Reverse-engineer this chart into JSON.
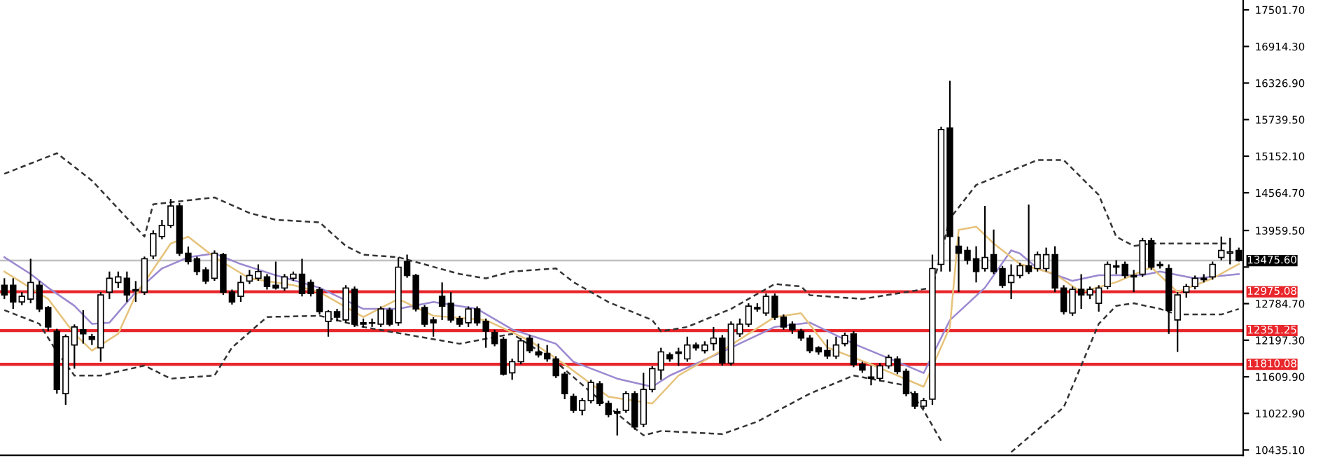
{
  "chart_data": {
    "type": "candlestick",
    "categories": [
      null,
      null,
      null,
      null,
      null,
      null,
      null,
      null,
      null,
      null,
      null,
      null,
      null,
      null,
      null,
      null,
      null,
      null,
      null,
      null,
      null,
      null,
      null,
      null,
      null,
      null,
      null,
      null,
      null,
      null,
      null,
      null,
      null,
      null,
      null,
      null,
      null,
      null,
      null,
      null,
      null,
      null,
      null,
      null,
      null,
      null,
      null,
      null,
      null,
      null,
      null,
      null,
      null,
      null,
      null,
      null,
      null,
      null,
      null,
      null,
      null,
      null,
      null,
      null,
      null,
      null,
      null,
      null,
      null,
      null,
      null,
      null,
      null,
      null,
      null,
      null,
      null,
      null,
      null,
      null,
      null,
      null,
      null,
      null,
      null,
      null,
      null,
      null,
      null,
      null,
      null,
      null,
      null,
      null,
      null,
      null,
      null,
      null,
      null,
      null,
      null,
      null,
      null,
      null,
      null,
      null,
      null,
      null,
      null,
      null,
      null,
      null,
      null,
      null,
      null,
      null,
      null,
      null,
      null,
      null,
      null,
      null,
      null,
      null,
      null,
      null,
      null,
      null,
      null,
      null,
      null,
      null,
      null,
      null,
      null,
      null,
      null,
      null,
      null,
      null,
      null,
      null
    ],
    "ohlc": [
      [
        13080,
        13192,
        12857,
        12924
      ],
      [
        13080,
        13192,
        12700,
        12812
      ],
      [
        12812,
        12969,
        12760,
        12902
      ],
      [
        12857,
        13505,
        12790,
        13125
      ],
      [
        13080,
        13150,
        12650,
        12700
      ],
      [
        12723,
        12745,
        12343,
        12410
      ],
      [
        12343,
        12380,
        11339,
        11406
      ],
      [
        11339,
        12290,
        11160,
        12254
      ],
      [
        12120,
        12450,
        11740,
        12410
      ],
      [
        12366,
        12680,
        12143,
        12299
      ],
      [
        12254,
        12299,
        12120,
        12210
      ],
      [
        12076,
        12970,
        11852,
        12924
      ],
      [
        12969,
        13300,
        12857,
        13192
      ],
      [
        13125,
        13300,
        13036,
        13214
      ],
      [
        13192,
        13300,
        12812,
        12924
      ],
      [
        13010,
        13147,
        12812,
        12990
      ],
      [
        12969,
        13540,
        12924,
        13505
      ],
      [
        13550,
        13960,
        13500,
        13907
      ],
      [
        13862,
        14130,
        13820,
        14040
      ],
      [
        14040,
        14465,
        14000,
        14353
      ],
      [
        14353,
        14400,
        13550,
        13594
      ],
      [
        13594,
        13700,
        13415,
        13460
      ],
      [
        13505,
        13540,
        13240,
        13300
      ],
      [
        13326,
        13370,
        13100,
        13147
      ],
      [
        13192,
        13640,
        13150,
        13594
      ],
      [
        13572,
        13600,
        12924,
        12969
      ],
      [
        12969,
        13010,
        12770,
        12812
      ],
      [
        12902,
        13236,
        12812,
        13125
      ],
      [
        13147,
        13326,
        13100,
        13236
      ],
      [
        13192,
        13415,
        13150,
        13300
      ],
      [
        13214,
        13260,
        13010,
        13058
      ],
      [
        13080,
        13460,
        13010,
        13036
      ],
      [
        13036,
        13260,
        12990,
        13214
      ],
      [
        13192,
        13300,
        13150,
        13258
      ],
      [
        13258,
        13505,
        12900,
        12946
      ],
      [
        13125,
        13170,
        12900,
        12946
      ],
      [
        13010,
        13050,
        12610,
        12656
      ],
      [
        12500,
        12680,
        12254,
        12656
      ],
      [
        12656,
        12700,
        12500,
        12567
      ],
      [
        12522,
        13080,
        12480,
        13036
      ],
      [
        13014,
        13060,
        12410,
        12455
      ],
      [
        12478,
        12545,
        12400,
        12455
      ],
      [
        12478,
        12545,
        12410,
        12470
      ],
      [
        12455,
        12740,
        12410,
        12700
      ],
      [
        12680,
        12720,
        12420,
        12455
      ],
      [
        12478,
        13527,
        12430,
        13370
      ],
      [
        13460,
        13572,
        13200,
        13236
      ],
      [
        13236,
        13260,
        12660,
        12700
      ],
      [
        12723,
        12760,
        12410,
        12455
      ],
      [
        12522,
        12567,
        12254,
        12478
      ],
      [
        12902,
        13125,
        12522,
        12745
      ],
      [
        12790,
        12969,
        12480,
        12522
      ],
      [
        12545,
        12590,
        12410,
        12455
      ],
      [
        12478,
        12740,
        12410,
        12700
      ],
      [
        12700,
        12740,
        12430,
        12478
      ],
      [
        12500,
        12545,
        12076,
        12343
      ],
      [
        12320,
        12366,
        12100,
        12143
      ],
      [
        12210,
        12250,
        11630,
        11652
      ],
      [
        11674,
        11900,
        11562,
        11852
      ],
      [
        11852,
        12230,
        11810,
        12187
      ],
      [
        12232,
        12280,
        11990,
        12031
      ],
      [
        12009,
        12143,
        11920,
        11964
      ],
      [
        11986,
        12120,
        11852,
        11897
      ],
      [
        11897,
        11940,
        11590,
        11629
      ],
      [
        11652,
        11690,
        11250,
        11339
      ],
      [
        11295,
        11340,
        11030,
        11071
      ],
      [
        11071,
        11270,
        10990,
        11227
      ],
      [
        11227,
        11562,
        11182,
        11518
      ],
      [
        11496,
        11540,
        11140,
        11182
      ],
      [
        11182,
        11227,
        10959,
        11004
      ],
      [
        11050,
        11100,
        10668,
        11027
      ],
      [
        11071,
        11380,
        11030,
        11339
      ],
      [
        11339,
        11380,
        10760,
        10803
      ],
      [
        10848,
        11674,
        10800,
        11406
      ],
      [
        11406,
        11780,
        11360,
        11741
      ],
      [
        11718,
        12076,
        11562,
        12009
      ],
      [
        11964,
        12000,
        11852,
        11897
      ],
      [
        12009,
        12076,
        11785,
        11986
      ],
      [
        11897,
        12254,
        11852,
        12120
      ],
      [
        12120,
        12160,
        12031,
        12076
      ],
      [
        12031,
        12180,
        11986,
        12120
      ],
      [
        12143,
        12410,
        12031,
        12232
      ],
      [
        12232,
        12280,
        11790,
        11830
      ],
      [
        11830,
        12500,
        11790,
        12455
      ],
      [
        12299,
        12545,
        12250,
        12455
      ],
      [
        12455,
        12790,
        12410,
        12745
      ],
      [
        12723,
        12790,
        12656,
        12700
      ],
      [
        12634,
        12946,
        12590,
        12902
      ],
      [
        12902,
        12946,
        12522,
        12567
      ],
      [
        12567,
        12610,
        12366,
        12410
      ],
      [
        12455,
        12500,
        12299,
        12366
      ],
      [
        12343,
        12380,
        12187,
        12232
      ],
      [
        12232,
        12280,
        11990,
        12031
      ],
      [
        12076,
        12100,
        11964,
        12009
      ],
      [
        12031,
        12210,
        11897,
        11942
      ],
      [
        11942,
        12254,
        11897,
        12120
      ],
      [
        12143,
        12320,
        12100,
        12276
      ],
      [
        12299,
        12343,
        11764,
        11808
      ],
      [
        11808,
        11852,
        11674,
        11718
      ],
      [
        11607,
        11785,
        11473,
        11585
      ],
      [
        11585,
        11830,
        11540,
        11785
      ],
      [
        11785,
        11964,
        11740,
        11920
      ],
      [
        11897,
        11940,
        11652,
        11696
      ],
      [
        11696,
        11740,
        11295,
        11339
      ],
      [
        11339,
        11380,
        11094,
        11138
      ],
      [
        11138,
        11270,
        11094,
        11227
      ],
      [
        11250,
        13572,
        11160,
        13348
      ],
      [
        13415,
        15626,
        13300,
        15581
      ],
      [
        15604,
        16363,
        13300,
        13862
      ],
      [
        13706,
        13862,
        12969,
        13594
      ],
      [
        13639,
        13700,
        13415,
        13482
      ],
      [
        13505,
        13706,
        13125,
        13300
      ],
      [
        13348,
        14353,
        13300,
        13527
      ],
      [
        13572,
        13974,
        13260,
        13300
      ],
      [
        13348,
        13390,
        13036,
        13080
      ],
      [
        13125,
        13415,
        12857,
        13236
      ],
      [
        13236,
        13440,
        13192,
        13393
      ],
      [
        13393,
        14375,
        13260,
        13300
      ],
      [
        13348,
        13620,
        13300,
        13572
      ],
      [
        13348,
        13684,
        13300,
        13572
      ],
      [
        13572,
        13706,
        12969,
        13036
      ],
      [
        13036,
        13080,
        12610,
        12656
      ],
      [
        12634,
        13058,
        12590,
        13014
      ],
      [
        13014,
        13258,
        12700,
        12924
      ],
      [
        12924,
        13058,
        12857,
        13014
      ],
      [
        12790,
        13080,
        12656,
        13036
      ],
      [
        13058,
        13460,
        13014,
        13415
      ],
      [
        13393,
        13482,
        13258,
        13370
      ],
      [
        13415,
        13460,
        13192,
        13236
      ],
      [
        13236,
        13326,
        12969,
        13214
      ],
      [
        13258,
        13840,
        13214,
        13795
      ],
      [
        13795,
        13840,
        13326,
        13370
      ],
      [
        13415,
        13460,
        13348,
        13393
      ],
      [
        13348,
        13415,
        12299,
        12678
      ],
      [
        12522,
        12969,
        12009,
        12924
      ],
      [
        12969,
        13100,
        12880,
        13058
      ],
      [
        13058,
        13236,
        13014,
        13192
      ],
      [
        13192,
        13258,
        13125,
        13170
      ],
      [
        13214,
        13460,
        13170,
        13415
      ],
      [
        13527,
        13862,
        13482,
        13639
      ],
      [
        13594,
        13840,
        13415,
        13616
      ],
      [
        13639,
        13684,
        13460,
        13475.6
      ]
    ],
    "series": [
      {
        "type": "line",
        "color": "#333333",
        "line_style": "dashed",
        "values": [
          14870,
          null,
          null,
          null,
          null,
          null,
          15200,
          null,
          null,
          null,
          14760,
          null,
          null,
          14310,
          null,
          null,
          13860,
          14380,
          null,
          null,
          null,
          null,
          null,
          null,
          14490,
          null,
          null,
          null,
          14240,
          null,
          null,
          14130,
          null,
          null,
          null,
          null,
          14090,
          null,
          null,
          13710,
          null,
          13570,
          null,
          null,
          null,
          13530,
          null,
          null,
          null,
          null,
          null,
          null,
          13260,
          null,
          null,
          13190,
          null,
          null,
          13300,
          null,
          null,
          null,
          null,
          13350,
          null,
          13130,
          null,
          null,
          null,
          12810,
          null,
          null,
          null,
          null,
          12520,
          12340,
          null,
          null,
          12410,
          null,
          null,
          null,
          null,
          12700,
          null,
          null,
          null,
          null,
          13100,
          null,
          null,
          13060,
          12920,
          null,
          null,
          null,
          null,
          null,
          12860,
          null,
          null,
          null,
          null,
          12970,
          null,
          null,
          13040,
          null,
          14150,
          null,
          null,
          14690,
          null,
          null,
          null,
          null,
          null,
          null,
          15090,
          null,
          null,
          15090,
          null,
          null,
          null,
          14530,
          null,
          13860,
          null,
          13710,
          null,
          13750,
          null,
          null,
          null,
          null,
          null,
          null,
          null,
          null,
          13750,
          null
        ]
      },
      {
        "type": "line",
        "color": "#333333",
        "line_style": "dashed",
        "values": [
          12680,
          null,
          null,
          null,
          12460,
          null,
          12010,
          null,
          11630,
          null,
          null,
          11630,
          null,
          null,
          null,
          null,
          11790,
          null,
          null,
          11580,
          null,
          null,
          null,
          null,
          11630,
          null,
          12080,
          null,
          null,
          null,
          12570,
          null,
          null,
          null,
          null,
          null,
          12590,
          null,
          null,
          null,
          null,
          12410,
          null,
          null,
          null,
          null,
          null,
          null,
          null,
          null,
          null,
          null,
          12140,
          null,
          null,
          null,
          null,
          null,
          12300,
          null,
          null,
          null,
          null,
          11850,
          null,
          null,
          null,
          11360,
          null,
          null,
          null,
          null,
          null,
          10670,
          null,
          10740,
          null,
          null,
          null,
          null,
          null,
          null,
          10690,
          null,
          null,
          null,
          10890,
          null,
          null,
          null,
          null,
          null,
          11340,
          null,
          null,
          null,
          null,
          11630,
          null,
          null,
          null,
          null,
          null,
          11470,
          null,
          11070,
          null,
          10580,
          null,
          null,
          null,
          null,
          null,
          null,
          null,
          null,
          null,
          null,
          null,
          null,
          null,
          null,
          null,
          null,
          null,
          null,
          null,
          null,
          null,
          null,
          null,
          null,
          null,
          null,
          null,
          null,
          null,
          null,
          null,
          null,
          null,
          null
        ]
      },
      {
        "type": "line",
        "color": "#333333",
        "line_style": "dashed",
        "values": [
          null,
          null,
          null,
          null,
          null,
          null,
          null,
          null,
          null,
          null,
          null,
          null,
          null,
          null,
          null,
          null,
          null,
          null,
          null,
          null,
          null,
          null,
          null,
          null,
          null,
          null,
          null,
          null,
          null,
          null,
          null,
          null,
          null,
          null,
          null,
          null,
          null,
          null,
          null,
          null,
          null,
          null,
          null,
          null,
          null,
          null,
          null,
          null,
          null,
          null,
          null,
          null,
          null,
          null,
          null,
          null,
          null,
          null,
          null,
          null,
          null,
          null,
          null,
          null,
          null,
          null,
          null,
          null,
          null,
          null,
          null,
          null,
          null,
          null,
          null,
          null,
          null,
          null,
          null,
          null,
          null,
          null,
          null,
          null,
          null,
          null,
          null,
          null,
          null,
          null,
          null,
          null,
          null,
          null,
          null,
          null,
          null,
          null,
          null,
          null,
          null,
          null,
          null,
          null,
          null,
          null,
          null,
          null,
          null,
          null,
          null,
          null,
          null,
          null,
          null,
          10400,
          null,
          null,
          null,
          null,
          null,
          11120,
          null,
          11790,
          null,
          12460,
          null,
          12750,
          null,
          12790,
          null,
          null,
          12700,
          null,
          12610,
          null,
          null,
          null,
          null,
          12610,
          null,
          12700
        ]
      },
      {
        "type": "line",
        "color": "#9b88d0",
        "line_style": "solid",
        "values": [
          13530,
          null,
          null,
          13260,
          null,
          13040,
          null,
          null,
          12750,
          null,
          12460,
          null,
          12480,
          null,
          null,
          12970,
          null,
          null,
          13350,
          null,
          null,
          13530,
          null,
          null,
          13590,
          null,
          null,
          13420,
          null,
          null,
          null,
          13240,
          null,
          null,
          null,
          null,
          13040,
          null,
          null,
          null,
          null,
          12700,
          null,
          null,
          null,
          12700,
          null,
          null,
          null,
          12810,
          null,
          null,
          null,
          null,
          12700,
          null,
          null,
          null,
          12370,
          null,
          null,
          null,
          null,
          12140,
          null,
          11850,
          null,
          null,
          null,
          null,
          11580,
          null,
          null,
          null,
          11450,
          null,
          11630,
          null,
          null,
          null,
          null,
          null,
          12010,
          null,
          null,
          null,
          null,
          null,
          12410,
          null,
          null,
          null,
          12480,
          null,
          null,
          null,
          null,
          12140,
          null,
          null,
          null,
          null,
          11850,
          null,
          null,
          11670,
          null,
          null,
          12520,
          null,
          null,
          null,
          13040,
          null,
          null,
          13640,
          13590,
          null,
          13350,
          null,
          null,
          null,
          13150,
          null,
          null,
          13240,
          null,
          null,
          null,
          null,
          13240,
          null,
          13300,
          null,
          null,
          null,
          13190,
          null,
          null,
          null,
          null,
          13260
        ]
      },
      {
        "type": "line",
        "color": "#e6c27a",
        "line_style": "solid",
        "values": [
          13300,
          null,
          null,
          null,
          null,
          12860,
          null,
          null,
          12300,
          null,
          12030,
          null,
          null,
          12300,
          null,
          12920,
          null,
          null,
          null,
          13750,
          null,
          13860,
          null,
          null,
          13530,
          null,
          null,
          null,
          13190,
          null,
          null,
          null,
          null,
          13080,
          null,
          null,
          12970,
          null,
          null,
          null,
          null,
          12570,
          null,
          null,
          null,
          12860,
          null,
          null,
          null,
          12590,
          null,
          null,
          null,
          null,
          null,
          12520,
          null,
          null,
          null,
          null,
          12190,
          null,
          null,
          null,
          11810,
          null,
          null,
          null,
          null,
          11290,
          null,
          null,
          null,
          null,
          11180,
          null,
          null,
          11630,
          null,
          null,
          null,
          null,
          null,
          12120,
          null,
          null,
          null,
          null,
          12570,
          null,
          null,
          12630,
          null,
          null,
          12080,
          null,
          null,
          null,
          null,
          11810,
          null,
          null,
          null,
          null,
          null,
          11450,
          null,
          null,
          12410,
          13970,
          null,
          14020,
          null,
          13750,
          null,
          null,
          13420,
          null,
          null,
          null,
          13260,
          null,
          null,
          12970,
          null,
          null,
          null,
          13130,
          null,
          null,
          null,
          13370,
          null,
          null,
          12970,
          null,
          null,
          null,
          13190,
          null,
          null,
          13420
        ]
      }
    ],
    "ylim": [
      10350,
      17660
    ],
    "yticks": [
      {
        "value": 10435.1,
        "label": "10435.10"
      },
      {
        "value": 11022.9,
        "label": "11022.90"
      },
      {
        "value": 11609.9,
        "label": "11609.90"
      },
      {
        "value": 12197.3,
        "label": "12197.30"
      },
      {
        "value": 12784.7,
        "label": "12784.70"
      },
      {
        "value": 13372.1,
        "label": null
      },
      {
        "value": 13959.5,
        "label": "13959.50"
      },
      {
        "value": 14564.7,
        "label": "14564.70"
      },
      {
        "value": 15152.1,
        "label": "15152.10"
      },
      {
        "value": 15739.5,
        "label": "15739.50"
      },
      {
        "value": 16326.9,
        "label": "16326.90"
      },
      {
        "value": 16914.3,
        "label": "16914.30"
      },
      {
        "value": 17501.7,
        "label": "17501.70"
      }
    ],
    "ref_lines": [
      {
        "axis": "y",
        "value": 13475.6,
        "label": "13475.60",
        "color": "#c0c0c0"
      },
      {
        "axis": "y",
        "value": 12975.08,
        "label": "12975.08",
        "color": "#e8262b"
      },
      {
        "axis": "y",
        "value": 12351.25,
        "label": "12351.25",
        "color": "#e8262b"
      },
      {
        "axis": "y",
        "value": 11810.08,
        "label": "11810.08",
        "color": "#e8262b"
      }
    ],
    "tick_labels": "y",
    "grid": false,
    "legend": false
  }
}
